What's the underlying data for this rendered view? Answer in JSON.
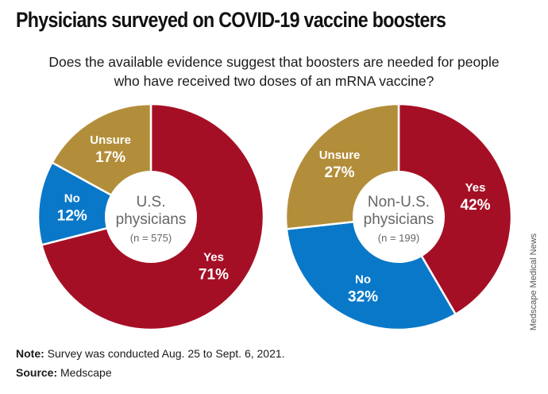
{
  "title": "Physicians surveyed on COVID-19 vaccine boosters",
  "question": {
    "line1": "Does the available evidence suggest that boosters are needed for people",
    "line2": "who have received two doses of an mRNA vaccine?"
  },
  "colors": {
    "yes": "#a50f25",
    "no": "#0a78c8",
    "unsure": "#b38e3a",
    "center": "#ffffff",
    "center_text": "#666666"
  },
  "chart_data": [
    {
      "type": "pie",
      "variant": "donut",
      "center": {
        "line1": "U.S.",
        "line2": "physicians",
        "line3": "(n = 575)"
      },
      "slices": [
        {
          "label": "Yes",
          "value": 71,
          "value_label": "71%",
          "color": "#a50f25"
        },
        {
          "label": "No",
          "value": 12,
          "value_label": "12%",
          "color": "#0a78c8"
        },
        {
          "label": "Unsure",
          "value": 17,
          "value_label": "17%",
          "color": "#b38e3a"
        }
      ]
    },
    {
      "type": "pie",
      "variant": "donut",
      "center": {
        "line1": "Non-U.S.",
        "line2": "physicians",
        "line3": "(n = 199)"
      },
      "slices": [
        {
          "label": "Yes",
          "value": 42,
          "value_label": "42%",
          "color": "#a50f25"
        },
        {
          "label": "No",
          "value": 32,
          "value_label": "32%",
          "color": "#0a78c8"
        },
        {
          "label": "Unsure",
          "value": 27,
          "value_label": "27%",
          "color": "#b38e3a"
        }
      ]
    }
  ],
  "note": {
    "label": "Note:",
    "text": " Survey was conducted Aug. 25 to Sept. 6, 2021."
  },
  "source": {
    "label": "Source:",
    "text": " Medscape"
  },
  "credit": "Medscape Medical News"
}
